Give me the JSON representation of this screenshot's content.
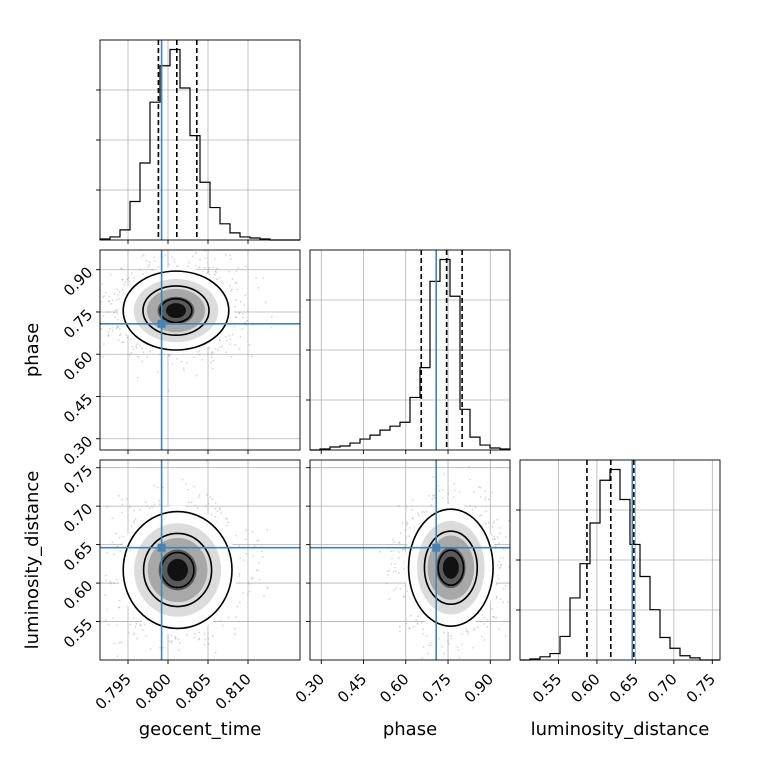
{
  "chart_data": {
    "type": "corner",
    "title": "",
    "parameters": [
      "geocent_time",
      "phase",
      "luminosity_distance"
    ],
    "truth_color": "#4682b4",
    "truths": {
      "geocent_time": 0.7992,
      "phase": 0.708,
      "luminosity_distance": 0.646
    },
    "axes": {
      "geocent_time": {
        "range": [
          0.7915,
          0.8165
        ],
        "ticks": [
          0.795,
          0.8,
          0.805,
          0.81
        ],
        "tick_labels": [
          "0.795",
          "0.800",
          "0.805",
          "0.810"
        ],
        "label": "geocent_time"
      },
      "phase": {
        "range": [
          0.26,
          0.97
        ],
        "ticks": [
          0.3,
          0.45,
          0.6,
          0.75,
          0.9
        ],
        "tick_labels": [
          "0.30",
          "0.45",
          "0.60",
          "0.75",
          "0.90"
        ],
        "label": "phase"
      },
      "luminosity_distance": {
        "range": [
          0.5,
          0.76
        ],
        "ticks": [
          0.55,
          0.6,
          0.65,
          0.7,
          0.75
        ],
        "tick_labels": [
          "0.55",
          "0.60",
          "0.65",
          "0.70",
          "0.75"
        ],
        "label": "luminosity_distance"
      }
    },
    "histograms": {
      "geocent_time": {
        "bin_edges": [
          0.7915,
          0.79275,
          0.794,
          0.79525,
          0.7965,
          0.79775,
          0.799,
          0.80025,
          0.8015,
          0.80275,
          0.804,
          0.80525,
          0.8065,
          0.80775,
          0.809,
          0.81025,
          0.8115,
          0.81275,
          0.814,
          0.81525,
          0.8165
        ],
        "counts": [
          1,
          3,
          10,
          38,
          76,
          136,
          172,
          188,
          150,
          103,
          57,
          32,
          16,
          7,
          3,
          2,
          1,
          0,
          0,
          0
        ],
        "quantiles": [
          0.7988,
          0.8011,
          0.8036
        ]
      },
      "phase": {
        "bin_edges": [
          0.26,
          0.2955,
          0.331,
          0.3665,
          0.402,
          0.4375,
          0.473,
          0.5085,
          0.544,
          0.5795,
          0.615,
          0.6505,
          0.686,
          0.7215,
          0.757,
          0.7925,
          0.828,
          0.8635,
          0.899,
          0.9345,
          0.97
        ],
        "counts": [
          0,
          1,
          3,
          4,
          7,
          11,
          15,
          20,
          24,
          28,
          53,
          83,
          170,
          192,
          155,
          41,
          13,
          5,
          2,
          1
        ],
        "quantiles": [
          0.655,
          0.745,
          0.8
        ]
      },
      "luminosity_distance": {
        "bin_edges": [
          0.5,
          0.513,
          0.526,
          0.539,
          0.552,
          0.565,
          0.578,
          0.591,
          0.604,
          0.617,
          0.63,
          0.643,
          0.656,
          0.669,
          0.682,
          0.695,
          0.708,
          0.721,
          0.734,
          0.747,
          0.76
        ],
        "counts": [
          0,
          1,
          3,
          6,
          22,
          58,
          90,
          128,
          168,
          178,
          150,
          108,
          78,
          47,
          21,
          11,
          4,
          2,
          0,
          0
        ],
        "quantiles": [
          0.587,
          0.618,
          0.648
        ]
      }
    },
    "pairs": [
      {
        "x": "geocent_time",
        "y": "phase",
        "center": [
          0.801,
          0.755
        ],
        "spread": [
          0.0033,
          0.07
        ],
        "contour_levels": [
          "inner",
          "middle",
          "outer"
        ]
      },
      {
        "x": "geocent_time",
        "y": "luminosity_distance",
        "center": [
          0.8012,
          0.617
        ],
        "spread": [
          0.0034,
          0.038
        ],
        "contour_levels": [
          "inner",
          "middle",
          "outer"
        ]
      },
      {
        "x": "phase",
        "y": "luminosity_distance",
        "center": [
          0.76,
          0.62
        ],
        "spread": [
          0.075,
          0.038
        ],
        "contour_levels": [
          "inner",
          "middle",
          "outer"
        ]
      }
    ],
    "grid": true
  }
}
